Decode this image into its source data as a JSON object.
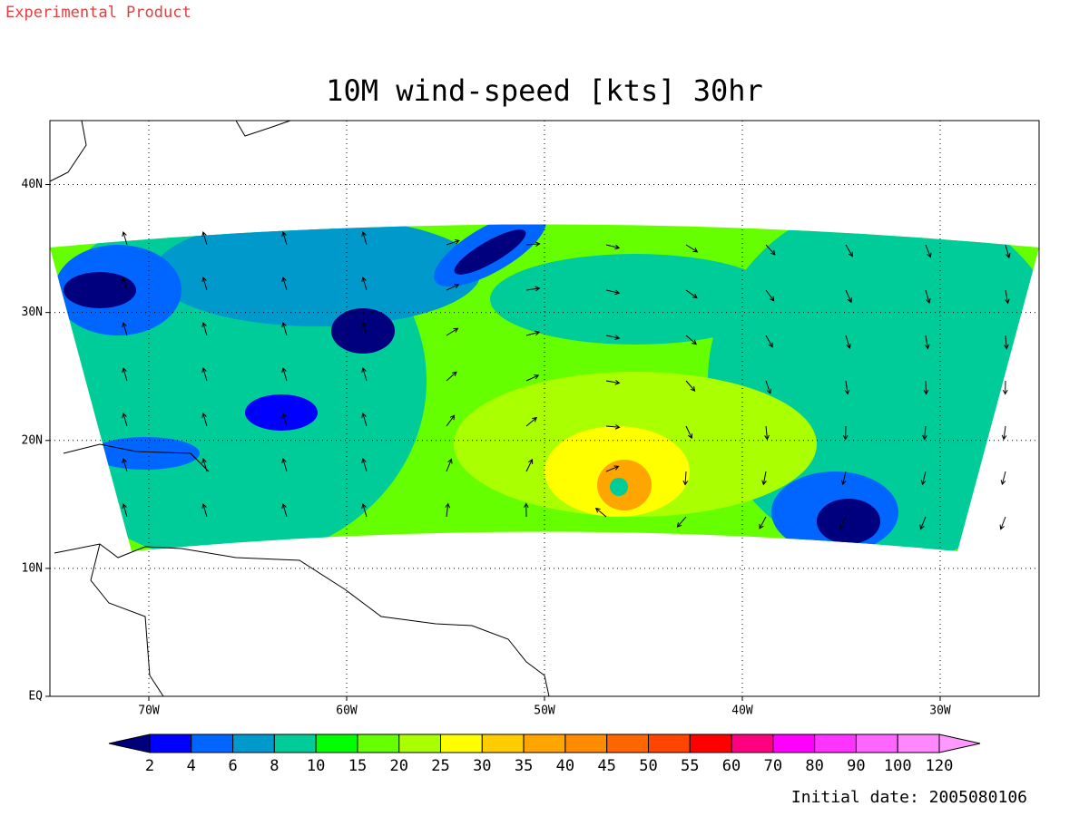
{
  "header": {
    "label": "Experimental Product"
  },
  "map": {
    "title": "10M wind-speed [kts] 30hr",
    "lon_range": [
      -75,
      -25
    ],
    "lat_range": [
      0,
      45
    ],
    "lon_ticks": [
      {
        "value": -70,
        "label": "70W"
      },
      {
        "value": -60,
        "label": "60W"
      },
      {
        "value": -50,
        "label": "50W"
      },
      {
        "value": -40,
        "label": "40W"
      },
      {
        "value": -30,
        "label": "30W"
      }
    ],
    "lat_ticks": [
      {
        "value": 0,
        "label": "EQ"
      },
      {
        "value": 10,
        "label": "10N"
      },
      {
        "value": 20,
        "label": "20N"
      },
      {
        "value": 30,
        "label": "30N"
      },
      {
        "value": 40,
        "label": "40N"
      }
    ],
    "grid": true
  },
  "colorbar": {
    "levels": [
      2,
      4,
      6,
      8,
      10,
      15,
      20,
      25,
      30,
      35,
      40,
      45,
      50,
      55,
      60,
      70,
      80,
      90,
      100,
      120
    ],
    "colors": [
      "#00007f",
      "#0000ff",
      "#0066ff",
      "#0099cc",
      "#00cc99",
      "#00ff00",
      "#66ff00",
      "#aaff00",
      "#ffff00",
      "#ffcc00",
      "#ffa500",
      "#ff8c00",
      "#ff6600",
      "#ff4500",
      "#ff0000",
      "#ff0080",
      "#ff00ff",
      "#ff33ff",
      "#ff66ff",
      "#ff88ff",
      "#ff99ff"
    ]
  },
  "footer": {
    "initial_date": "Initial date: 2005080106"
  }
}
